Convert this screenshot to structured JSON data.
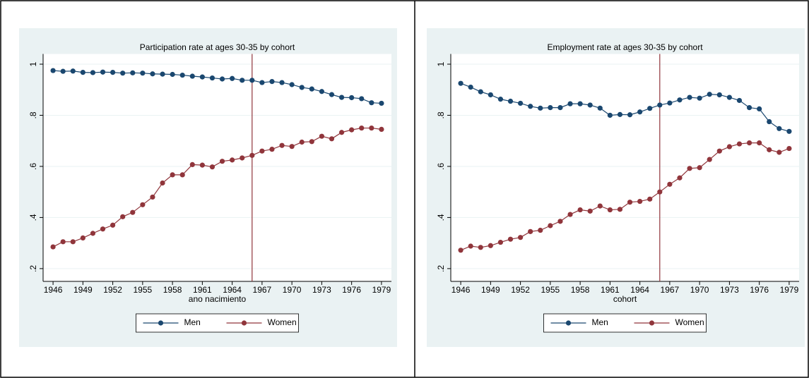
{
  "chart_data": [
    {
      "type": "line",
      "title": "Participation rate at ages 30-35 by cohort",
      "xlabel": "ano nacimiento",
      "x": [
        1946,
        1947,
        1948,
        1949,
        1950,
        1951,
        1952,
        1953,
        1954,
        1955,
        1956,
        1957,
        1958,
        1959,
        1960,
        1961,
        1962,
        1963,
        1964,
        1965,
        1966,
        1967,
        1968,
        1969,
        1970,
        1971,
        1972,
        1973,
        1974,
        1975,
        1976,
        1977,
        1978,
        1979
      ],
      "series": [
        {
          "name": "Men",
          "color": "#1a476f",
          "values": [
            0.975,
            0.972,
            0.973,
            0.968,
            0.967,
            0.969,
            0.968,
            0.965,
            0.966,
            0.965,
            0.962,
            0.961,
            0.96,
            0.957,
            0.953,
            0.95,
            0.946,
            0.942,
            0.944,
            0.937,
            0.937,
            0.928,
            0.932,
            0.928,
            0.92,
            0.909,
            0.903,
            0.893,
            0.881,
            0.87,
            0.869,
            0.865,
            0.849,
            0.847
          ]
        },
        {
          "name": "Women",
          "color": "#90353b",
          "values": [
            0.285,
            0.305,
            0.305,
            0.32,
            0.338,
            0.355,
            0.37,
            0.403,
            0.42,
            0.45,
            0.48,
            0.535,
            0.567,
            0.567,
            0.607,
            0.605,
            0.598,
            0.62,
            0.625,
            0.633,
            0.643,
            0.66,
            0.667,
            0.682,
            0.678,
            0.695,
            0.697,
            0.718,
            0.708,
            0.733,
            0.743,
            0.75,
            0.75,
            0.745
          ]
        }
      ],
      "xlim": [
        1945,
        1980
      ],
      "xticks": [
        1946,
        1949,
        1952,
        1955,
        1958,
        1961,
        1964,
        1967,
        1970,
        1973,
        1976,
        1979
      ],
      "ylim": [
        0.15,
        1.04
      ],
      "yticks": [
        {
          "value": 0.2,
          "label": ".2"
        },
        {
          "value": 0.4,
          "label": ".4"
        },
        {
          "value": 0.6,
          "label": ".6"
        },
        {
          "value": 0.8,
          "label": ".8"
        },
        1
      ],
      "vline": 1966,
      "vline_color": "#90353b",
      "grid": true,
      "legend": "bottom"
    },
    {
      "type": "line",
      "title": "Employment rate at ages 30-35 by cohort",
      "xlabel": "cohort",
      "x": [
        1946,
        1947,
        1948,
        1949,
        1950,
        1951,
        1952,
        1953,
        1954,
        1955,
        1956,
        1957,
        1958,
        1959,
        1960,
        1961,
        1962,
        1963,
        1964,
        1965,
        1966,
        1967,
        1968,
        1969,
        1970,
        1971,
        1972,
        1973,
        1974,
        1975,
        1976,
        1977,
        1978,
        1979
      ],
      "series": [
        {
          "name": "Men",
          "color": "#1a476f",
          "values": [
            0.925,
            0.91,
            0.892,
            0.88,
            0.863,
            0.855,
            0.847,
            0.835,
            0.828,
            0.83,
            0.83,
            0.845,
            0.845,
            0.84,
            0.828,
            0.8,
            0.803,
            0.802,
            0.813,
            0.827,
            0.84,
            0.848,
            0.86,
            0.87,
            0.867,
            0.882,
            0.88,
            0.87,
            0.858,
            0.83,
            0.825,
            0.775,
            0.748,
            0.737
          ]
        },
        {
          "name": "Women",
          "color": "#90353b",
          "values": [
            0.272,
            0.288,
            0.283,
            0.29,
            0.303,
            0.315,
            0.322,
            0.345,
            0.35,
            0.368,
            0.385,
            0.412,
            0.43,
            0.425,
            0.445,
            0.43,
            0.432,
            0.46,
            0.463,
            0.472,
            0.5,
            0.53,
            0.555,
            0.592,
            0.595,
            0.627,
            0.66,
            0.677,
            0.688,
            0.692,
            0.692,
            0.665,
            0.655,
            0.67
          ]
        }
      ],
      "xlim": [
        1945,
        1980
      ],
      "xticks": [
        1946,
        1949,
        1952,
        1955,
        1958,
        1961,
        1964,
        1967,
        1970,
        1973,
        1976,
        1979
      ],
      "ylim": [
        0.15,
        1.04
      ],
      "yticks": [
        {
          "value": 0.2,
          "label": ".2"
        },
        {
          "value": 0.4,
          "label": ".4"
        },
        {
          "value": 0.6,
          "label": ".6"
        },
        {
          "value": 0.8,
          "label": ".8"
        },
        1
      ],
      "vline": 1966,
      "vline_color": "#90353b",
      "grid": true,
      "legend": "bottom"
    }
  ]
}
